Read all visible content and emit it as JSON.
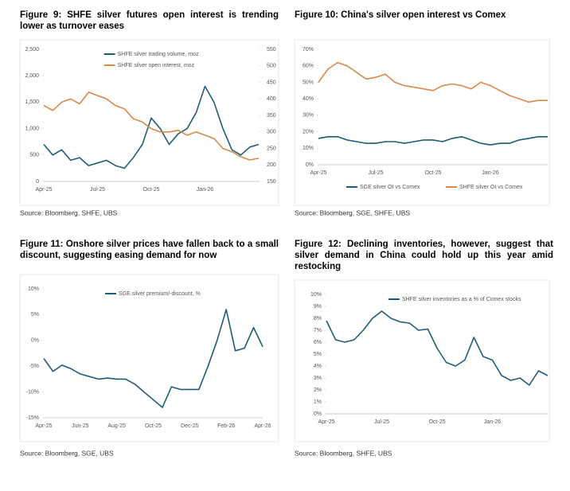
{
  "chart_data": [
    {
      "type": "line",
      "title": "Figure 9: SHFE silver futures open interest is trending lower as turnover eases",
      "source": "Source: Bloomberg, SHFE, UBS",
      "categories": [
        "Apr-25",
        null,
        null,
        null,
        null,
        null,
        "Jul-25",
        null,
        null,
        null,
        null,
        null,
        "Oct-25",
        null,
        null,
        null,
        null,
        null,
        "Jan-26",
        null,
        null,
        null,
        null,
        null,
        null
      ],
      "series": [
        {
          "name": "SHFE silver trading volume, moz",
          "color": "#1f5c7a",
          "values": [
            700,
            500,
            600,
            400,
            450,
            300,
            350,
            400,
            300,
            250,
            450,
            700,
            1200,
            1000,
            700,
            900,
            1000,
            1300,
            1800,
            1500,
            1000,
            600,
            500,
            650,
            700
          ]
        },
        {
          "name": "SHFE silver open interest, moz",
          "color": "#d9884a",
          "axis": "y2",
          "values": [
            380,
            365,
            390,
            400,
            385,
            420,
            410,
            400,
            380,
            370,
            340,
            330,
            310,
            300,
            300,
            305,
            290,
            300,
            290,
            280,
            250,
            240,
            225,
            215,
            220
          ]
        }
      ],
      "ylim": [
        0,
        2500
      ],
      "yticks": [
        0,
        500,
        {
          "value": 1000,
          "label": "1,000"
        },
        {
          "value": 1500,
          "label": "1,500"
        },
        {
          "value": 2000,
          "label": "2,000"
        },
        {
          "value": 2500,
          "label": "2,500"
        }
      ],
      "y2lim": [
        150,
        550
      ],
      "y2ticks": [
        150,
        200,
        250,
        300,
        350,
        400,
        450,
        500,
        550
      ],
      "legend": "top"
    },
    {
      "type": "line",
      "title": "Figure 10: China's silver open interest vs Comex",
      "source": "Source: Bloomberg, SGE, SHFE, UBS",
      "categories": [
        "Apr-25",
        null,
        null,
        null,
        null,
        null,
        "Jul-25",
        null,
        null,
        null,
        null,
        null,
        "Oct-25",
        null,
        null,
        null,
        null,
        null,
        "Jan-26",
        null,
        null,
        null,
        null,
        null,
        null
      ],
      "series": [
        {
          "name": "SGE silver OI vs Comex",
          "color": "#1f5c7a",
          "values": [
            16,
            17,
            17,
            15,
            14,
            13,
            13,
            14,
            14,
            13,
            14,
            15,
            15,
            14,
            16,
            17,
            15,
            13,
            12,
            13,
            13,
            15,
            16,
            17,
            17
          ]
        },
        {
          "name": "SHFE silver OI vs Comex",
          "color": "#d9884a",
          "values": [
            50,
            58,
            62,
            60,
            56,
            52,
            53,
            55,
            50,
            48,
            47,
            46,
            45,
            48,
            49,
            48,
            46,
            50,
            48,
            45,
            42,
            40,
            38,
            39,
            39
          ]
        }
      ],
      "ylim": [
        0,
        70
      ],
      "yticks": [
        {
          "value": 0,
          "label": "0%"
        },
        {
          "value": 10,
          "label": "10%"
        },
        {
          "value": 20,
          "label": "20%"
        },
        {
          "value": 30,
          "label": "30%"
        },
        {
          "value": 40,
          "label": "40%"
        },
        {
          "value": 50,
          "label": "50%"
        },
        {
          "value": 60,
          "label": "60%"
        },
        {
          "value": 70,
          "label": "70%"
        }
      ],
      "legend": "bottom"
    },
    {
      "type": "line",
      "title": "Figure 11: Onshore silver prices have fallen back to a small discount, suggesting easing demand for now",
      "source": "Source: Bloomberg, SGE, UBS",
      "categories": [
        "Apr-25",
        null,
        null,
        null,
        "Jun-25",
        null,
        null,
        null,
        "Aug-25",
        null,
        null,
        null,
        "Oct-25",
        null,
        null,
        null,
        "Dec-25",
        null,
        null,
        null,
        "Feb-26",
        null,
        null,
        null,
        "Apr-26"
      ],
      "series": [
        {
          "name": "SGE silver premium/-discount, %",
          "color": "#1f5c7a",
          "values": [
            -3.5,
            -6,
            -4.8,
            -5.5,
            -6.5,
            -7,
            -7.5,
            -7.3,
            -7.5,
            -7.5,
            -8.5,
            -10,
            -11.5,
            -13,
            -9,
            -9.5,
            -9.5,
            -9.5,
            -5,
            0,
            6,
            -2,
            -1.5,
            2.5,
            -1.2
          ]
        }
      ],
      "ylim": [
        -15,
        10
      ],
      "yticks": [
        {
          "value": -15,
          "label": "-15%"
        },
        {
          "value": -10,
          "label": "-10%"
        },
        {
          "value": -5,
          "label": "-5%"
        },
        {
          "value": 0,
          "label": "0%"
        },
        {
          "value": 5,
          "label": "5%"
        },
        {
          "value": 10,
          "label": "10%"
        }
      ],
      "legend": "top"
    },
    {
      "type": "line",
      "title": "Figure 12: Declining inventories, however, suggest that silver demand in China could hold up this year amid restocking",
      "source": "Source: Bloomberg, SHFE, UBS",
      "categories": [
        "Apr-25",
        null,
        null,
        null,
        null,
        null,
        "Jul-25",
        null,
        null,
        null,
        null,
        null,
        "Oct-25",
        null,
        null,
        null,
        null,
        null,
        "Jan-26",
        null,
        null,
        null,
        null,
        null,
        null
      ],
      "series": [
        {
          "name": "SHFE silver inventories as a % of Comex stocks",
          "color": "#1f5c7a",
          "values": [
            7.8,
            6.2,
            6.0,
            6.2,
            7.0,
            8.0,
            8.6,
            8.0,
            7.7,
            7.6,
            7.0,
            7.1,
            5.5,
            4.3,
            4.0,
            4.5,
            6.4,
            4.8,
            4.5,
            3.2,
            2.8,
            3.0,
            2.4,
            3.6,
            3.2
          ]
        }
      ],
      "ylim": [
        0,
        10
      ],
      "yticks": [
        {
          "value": 0,
          "label": "0%"
        },
        {
          "value": 1,
          "label": "1%"
        },
        {
          "value": 2,
          "label": "2%"
        },
        {
          "value": 3,
          "label": "3%"
        },
        {
          "value": 4,
          "label": "4%"
        },
        {
          "value": 5,
          "label": "5%"
        },
        {
          "value": 6,
          "label": "6%"
        },
        {
          "value": 7,
          "label": "7%"
        },
        {
          "value": 8,
          "label": "8%"
        },
        {
          "value": 9,
          "label": "9%"
        },
        {
          "value": 10,
          "label": "10%"
        }
      ],
      "legend": "top"
    }
  ]
}
